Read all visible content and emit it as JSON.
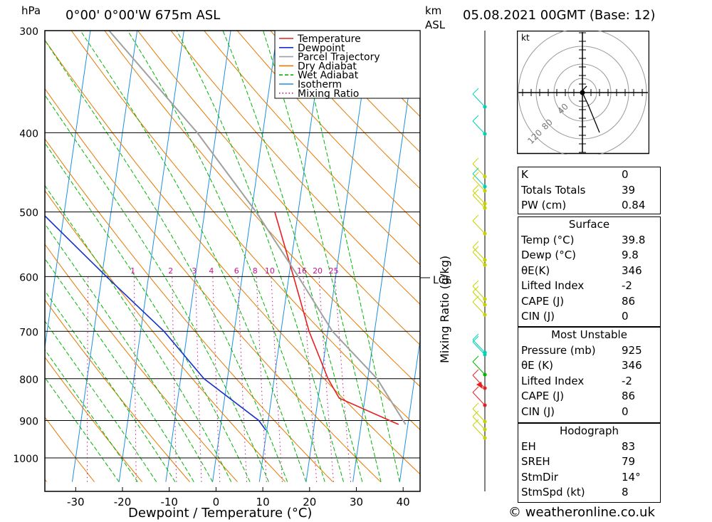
{
  "header": {
    "pressure_unit": "hPa",
    "location": "0°00' 0°00'W 675m ASL",
    "km_label": "km",
    "asl_label": "ASL",
    "datetime": "05.08.2021 00GMT (Base: 12)"
  },
  "chart_data": {
    "type": "line",
    "title": "",
    "xlabel": "Dewpoint / Temperature (°C)",
    "ylabel": "hPa",
    "right_axis_label": "Mixing Ratio (g/kg)",
    "x_ticks": [
      -30,
      -20,
      -10,
      0,
      10,
      20,
      30,
      40
    ],
    "y_ticks": [
      300,
      400,
      500,
      600,
      700,
      800,
      900,
      1000
    ],
    "ylim": [
      1070,
      300
    ],
    "skew": "log-pressure skew-T",
    "legend_position": "top-left",
    "legend": [
      {
        "name": "Temperature",
        "color": "#e62020"
      },
      {
        "name": "Dewpoint",
        "color": "#1432c8"
      },
      {
        "name": "Parcel Trajectory",
        "color": "#a0a0a0"
      },
      {
        "name": "Dry Adiabat",
        "color": "#e67800"
      },
      {
        "name": "Wet Adiabat",
        "color": "#00b400"
      },
      {
        "name": "Isotherm",
        "color": "#1e90e0"
      },
      {
        "name": "Mixing Ratio",
        "color": "#c8148c"
      }
    ],
    "mixing_ratio_labels": [
      "1",
      "2",
      "3",
      "4",
      "6",
      "8",
      "10",
      "16",
      "20",
      "25"
    ],
    "lcl_label": "LCL",
    "lcl_pressure": 600,
    "series": [
      {
        "name": "Temperature",
        "points": [
          [
            38.0,
            910
          ],
          [
            24.5,
            845
          ],
          [
            21.5,
            800
          ],
          [
            16.0,
            700
          ],
          [
            11.0,
            600
          ],
          [
            5.0,
            500
          ]
        ]
      },
      {
        "name": "Dewpoint",
        "points": [
          [
            9.8,
            925
          ],
          [
            8.0,
            900
          ],
          [
            -5.0,
            800
          ],
          [
            -15.0,
            700
          ],
          [
            -29.0,
            600
          ],
          [
            -45.0,
            500
          ]
        ]
      },
      {
        "name": "Parcel Trajectory",
        "points": [
          [
            39.5,
            910
          ],
          [
            32.0,
            800
          ],
          [
            21.0,
            700
          ],
          [
            12.0,
            600
          ],
          [
            1.0,
            500
          ],
          [
            -14.0,
            400
          ],
          [
            -36.0,
            300
          ]
        ]
      }
    ]
  },
  "wind_marker_colors": [
    "#00d2b4",
    "#c8d200",
    "#00b400",
    "#e62020"
  ],
  "hodograph": {
    "unit": "kt",
    "ring_labels": [
      "40",
      "80",
      "120"
    ]
  },
  "indices_table": {
    "rows": [
      {
        "label": "K",
        "value": "0"
      },
      {
        "label": "Totals Totals",
        "value": "39"
      },
      {
        "label": "PW (cm)",
        "value": "0.84"
      }
    ]
  },
  "surface_table": {
    "title": "Surface",
    "rows": [
      {
        "label": "Temp (°C)",
        "value": "39.8"
      },
      {
        "label": "Dewp (°C)",
        "value": "9.8"
      },
      {
        "label": "θE(K)",
        "value": "346"
      },
      {
        "label": "Lifted Index",
        "value": "-2"
      },
      {
        "label": "CAPE (J)",
        "value": "86"
      },
      {
        "label": "CIN (J)",
        "value": "0"
      }
    ]
  },
  "most_unstable_table": {
    "title": "Most Unstable",
    "rows": [
      {
        "label": "Pressure (mb)",
        "value": "925"
      },
      {
        "label": "θE (K)",
        "value": "346"
      },
      {
        "label": "Lifted Index",
        "value": "-2"
      },
      {
        "label": "CAPE (J)",
        "value": "86"
      },
      {
        "label": "CIN (J)",
        "value": "0"
      }
    ]
  },
  "hodograph_table": {
    "title": "Hodograph",
    "rows": [
      {
        "label": "EH",
        "value": "83"
      },
      {
        "label": "SREH",
        "value": "79"
      },
      {
        "label": "StmDir",
        "value": "14°"
      },
      {
        "label": "StmSpd (kt)",
        "value": "8"
      }
    ]
  },
  "footer": {
    "copyright": "© weatheronline.co.uk"
  }
}
